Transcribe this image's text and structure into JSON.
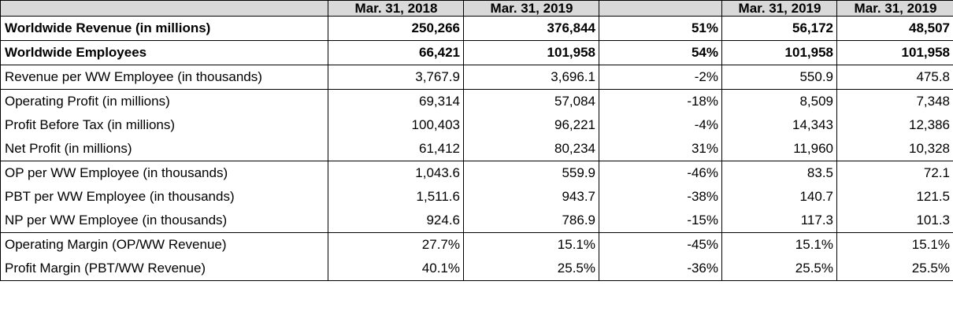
{
  "header": {
    "col1": "",
    "col2": "Mar. 31, 2018",
    "col3": "Mar. 31, 2019",
    "col4": "",
    "col5": "Mar. 31, 2019",
    "col6": "Mar. 31, 2019"
  },
  "rows": [
    {
      "label": "Worldwide Revenue (in millions)",
      "v1": "250,266",
      "v2": "376,844",
      "v3": "51%",
      "v4": "56,172",
      "v5": "48,507"
    },
    {
      "label": "Worldwide Employees",
      "v1": "66,421",
      "v2": "101,958",
      "v3": "54%",
      "v4": "101,958",
      "v5": "101,958"
    },
    {
      "label": "Revenue per WW Employee (in thousands)",
      "v1": "3,767.9",
      "v2": "3,696.1",
      "v3": "-2%",
      "v4": "550.9",
      "v5": "475.8"
    },
    {
      "label": "Operating Profit (in millions)",
      "v1": "69,314",
      "v2": "57,084",
      "v3": "-18%",
      "v4": "8,509",
      "v5": "7,348"
    },
    {
      "label": "Profit Before Tax (in millions)",
      "v1": "100,403",
      "v2": "96,221",
      "v3": "-4%",
      "v4": "14,343",
      "v5": "12,386"
    },
    {
      "label": "Net Profit (in millions)",
      "v1": "61,412",
      "v2": "80,234",
      "v3": "31%",
      "v4": "11,960",
      "v5": "10,328"
    },
    {
      "label": "OP per WW Employee (in thousands)",
      "v1": "1,043.6",
      "v2": "559.9",
      "v3": "-46%",
      "v4": "83.5",
      "v5": "72.1"
    },
    {
      "label": "PBT per WW Employee (in thousands)",
      "v1": "1,511.6",
      "v2": "943.7",
      "v3": "-38%",
      "v4": "140.7",
      "v5": "121.5"
    },
    {
      "label": "NP per WW Employee (in thousands)",
      "v1": "924.6",
      "v2": "786.9",
      "v3": "-15%",
      "v4": "117.3",
      "v5": "101.3"
    },
    {
      "label": "Operating Margin (OP/WW Revenue)",
      "v1": "27.7%",
      "v2": "15.1%",
      "v3": "-45%",
      "v4": "15.1%",
      "v5": "15.1%"
    },
    {
      "label": "Profit Margin (PBT/WW Revenue)",
      "v1": "40.1%",
      "v2": "25.5%",
      "v3": "-36%",
      "v4": "25.5%",
      "v5": "25.5%"
    }
  ]
}
